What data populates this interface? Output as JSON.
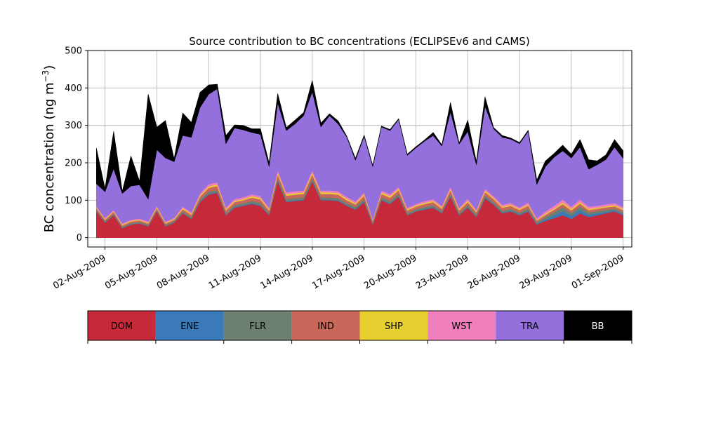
{
  "chart_data": {
    "type": "area",
    "stacked": true,
    "title": "Source contribution to BC concentrations (ECLIPSEv6 and CAMS)",
    "ylabel": "BC concentration (ng m",
    "ylabel_superscript": "−3",
    "ylabel_suffix": ")",
    "ylim": [
      -25,
      500
    ],
    "yticks": [
      0,
      100,
      200,
      300,
      400,
      500
    ],
    "x_range": [
      "2009-08-01T00:00",
      "2009-09-01T12:00"
    ],
    "x_tick_dates": [
      "2009-08-02",
      "2009-08-05",
      "2009-08-08",
      "2009-08-11",
      "2009-08-14",
      "2009-08-17",
      "2009-08-20",
      "2009-08-23",
      "2009-08-26",
      "2009-08-29",
      "2009-09-01"
    ],
    "x_tick_labels": [
      "02-Aug-2009",
      "05-Aug-2009",
      "08-Aug-2009",
      "11-Aug-2009",
      "14-Aug-2009",
      "17-Aug-2009",
      "20-Aug-2009",
      "23-Aug-2009",
      "26-Aug-2009",
      "29-Aug-2009",
      "01-Sep-2009"
    ],
    "grid": true,
    "legend_position": "below",
    "x": [
      "2009-08-01T12:00",
      "2009-08-02T00:00",
      "2009-08-02T12:00",
      "2009-08-03T00:00",
      "2009-08-03T12:00",
      "2009-08-04T00:00",
      "2009-08-04T12:00",
      "2009-08-05T00:00",
      "2009-08-05T12:00",
      "2009-08-06T00:00",
      "2009-08-06T12:00",
      "2009-08-07T00:00",
      "2009-08-07T12:00",
      "2009-08-08T00:00",
      "2009-08-08T12:00",
      "2009-08-09T00:00",
      "2009-08-09T12:00",
      "2009-08-10T00:00",
      "2009-08-10T12:00",
      "2009-08-11T00:00",
      "2009-08-11T12:00",
      "2009-08-12T00:00",
      "2009-08-12T12:00",
      "2009-08-13T00:00",
      "2009-08-13T12:00",
      "2009-08-14T00:00",
      "2009-08-14T12:00",
      "2009-08-15T00:00",
      "2009-08-15T12:00",
      "2009-08-16T00:00",
      "2009-08-16T12:00",
      "2009-08-17T00:00",
      "2009-08-17T12:00",
      "2009-08-18T00:00",
      "2009-08-18T12:00",
      "2009-08-19T00:00",
      "2009-08-19T12:00",
      "2009-08-20T00:00",
      "2009-08-20T12:00",
      "2009-08-21T00:00",
      "2009-08-21T12:00",
      "2009-08-22T00:00",
      "2009-08-22T12:00",
      "2009-08-23T00:00",
      "2009-08-23T12:00",
      "2009-08-24T00:00",
      "2009-08-24T12:00",
      "2009-08-25T00:00",
      "2009-08-25T12:00",
      "2009-08-26T00:00",
      "2009-08-26T12:00",
      "2009-08-27T00:00",
      "2009-08-27T12:00",
      "2009-08-28T00:00",
      "2009-08-28T12:00",
      "2009-08-29T00:00",
      "2009-08-29T12:00",
      "2009-08-30T00:00",
      "2009-08-30T12:00",
      "2009-08-31T00:00",
      "2009-08-31T12:00",
      "2009-09-01T00:00"
    ],
    "series": [
      {
        "name": "DOM",
        "color": "#c62a3a",
        "values": [
          70,
          40,
          60,
          25,
          35,
          38,
          30,
          70,
          30,
          40,
          65,
          50,
          95,
          115,
          120,
          60,
          80,
          85,
          90,
          85,
          60,
          150,
          95,
          98,
          100,
          150,
          100,
          100,
          98,
          85,
          75,
          95,
          35,
          100,
          90,
          110,
          60,
          70,
          75,
          80,
          65,
          110,
          60,
          80,
          55,
          105,
          88,
          65,
          70,
          60,
          70,
          35,
          45,
          52,
          60,
          50,
          65,
          55,
          60,
          65,
          70,
          60
        ]
      },
      {
        "name": "ENE",
        "color": "#3a7ab8",
        "values": [
          1,
          1,
          1,
          1,
          1,
          1,
          1,
          1,
          1,
          1,
          1,
          1,
          2,
          2,
          2,
          1,
          2,
          2,
          2,
          2,
          1,
          3,
          2,
          2,
          2,
          2,
          2,
          2,
          2,
          2,
          2,
          2,
          1,
          2,
          2,
          2,
          1,
          1,
          2,
          2,
          1,
          2,
          1,
          2,
          1,
          2,
          2,
          2,
          2,
          2,
          3,
          2,
          4,
          8,
          12,
          8,
          10,
          6,
          5,
          4,
          3,
          3
        ]
      },
      {
        "name": "FLR",
        "color": "#6d8070",
        "values": [
          3,
          3,
          3,
          3,
          3,
          3,
          3,
          3,
          3,
          3,
          4,
          4,
          5,
          6,
          6,
          5,
          5,
          5,
          6,
          6,
          5,
          6,
          6,
          6,
          6,
          7,
          6,
          6,
          6,
          5,
          5,
          6,
          4,
          6,
          6,
          6,
          5,
          5,
          5,
          5,
          5,
          6,
          5,
          5,
          5,
          6,
          5,
          5,
          5,
          5,
          5,
          4,
          6,
          8,
          10,
          8,
          9,
          7,
          6,
          6,
          5,
          5
        ]
      },
      {
        "name": "IND",
        "color": "#c8675a",
        "values": [
          5,
          4,
          5,
          4,
          4,
          4,
          4,
          5,
          4,
          4,
          6,
          6,
          8,
          10,
          10,
          7,
          8,
          8,
          9,
          9,
          7,
          10,
          9,
          9,
          9,
          10,
          9,
          9,
          9,
          8,
          7,
          9,
          5,
          9,
          9,
          9,
          7,
          7,
          8,
          8,
          7,
          9,
          7,
          8,
          7,
          9,
          8,
          8,
          8,
          7,
          8,
          5,
          6,
          7,
          8,
          7,
          7,
          6,
          6,
          6,
          6,
          6
        ]
      },
      {
        "name": "SHP",
        "color": "#e6cf2e",
        "values": [
          2,
          2,
          2,
          2,
          2,
          2,
          2,
          3,
          2,
          2,
          3,
          3,
          3,
          4,
          4,
          3,
          3,
          3,
          4,
          4,
          3,
          5,
          4,
          4,
          4,
          5,
          4,
          4,
          4,
          4,
          3,
          4,
          2,
          4,
          4,
          4,
          3,
          3,
          3,
          3,
          3,
          4,
          3,
          4,
          3,
          4,
          3,
          3,
          3,
          3,
          3,
          2,
          3,
          3,
          4,
          4,
          4,
          3,
          3,
          3,
          3,
          3
        ]
      },
      {
        "name": "WST",
        "color": "#f07fbd",
        "values": [
          3,
          3,
          3,
          3,
          3,
          3,
          3,
          3,
          3,
          3,
          4,
          4,
          5,
          6,
          6,
          5,
          5,
          5,
          5,
          5,
          4,
          6,
          5,
          5,
          5,
          6,
          5,
          5,
          5,
          5,
          5,
          5,
          3,
          5,
          5,
          5,
          4,
          4,
          5,
          5,
          4,
          5,
          4,
          5,
          4,
          5,
          5,
          5,
          5,
          4,
          5,
          4,
          6,
          7,
          8,
          6,
          7,
          6,
          5,
          5,
          5,
          5
        ]
      },
      {
        "name": "TRA",
        "color": "#9370db",
        "values": [
          60,
          70,
          110,
          80,
          90,
          90,
          60,
          150,
          170,
          150,
          190,
          200,
          230,
          240,
          250,
          170,
          190,
          180,
          165,
          165,
          110,
          180,
          165,
          180,
          200,
          210,
          170,
          200,
          180,
          160,
          110,
          150,
          140,
          170,
          170,
          180,
          140,
          150,
          160,
          170,
          160,
          200,
          170,
          180,
          120,
          220,
          180,
          180,
          170,
          170,
          190,
          90,
          120,
          130,
          130,
          130,
          140,
          100,
          110,
          120,
          150,
          130
        ]
      },
      {
        "name": "BB",
        "color": "#000000",
        "values": [
          95,
          8,
          100,
          6,
          80,
          10,
          280,
          60,
          100,
          8,
          60,
          40,
          40,
          25,
          12,
          22,
          8,
          12,
          10,
          15,
          10,
          25,
          8,
          10,
          8,
          30,
          10,
          5,
          8,
          2,
          5,
          3,
          3,
          2,
          3,
          2,
          3,
          3,
          3,
          8,
          3,
          25,
          3,
          30,
          8,
          25,
          3,
          5,
          3,
          3,
          3,
          12,
          15,
          10,
          15,
          10,
          20,
          25,
          10,
          12,
          20,
          20
        ]
      }
    ]
  }
}
